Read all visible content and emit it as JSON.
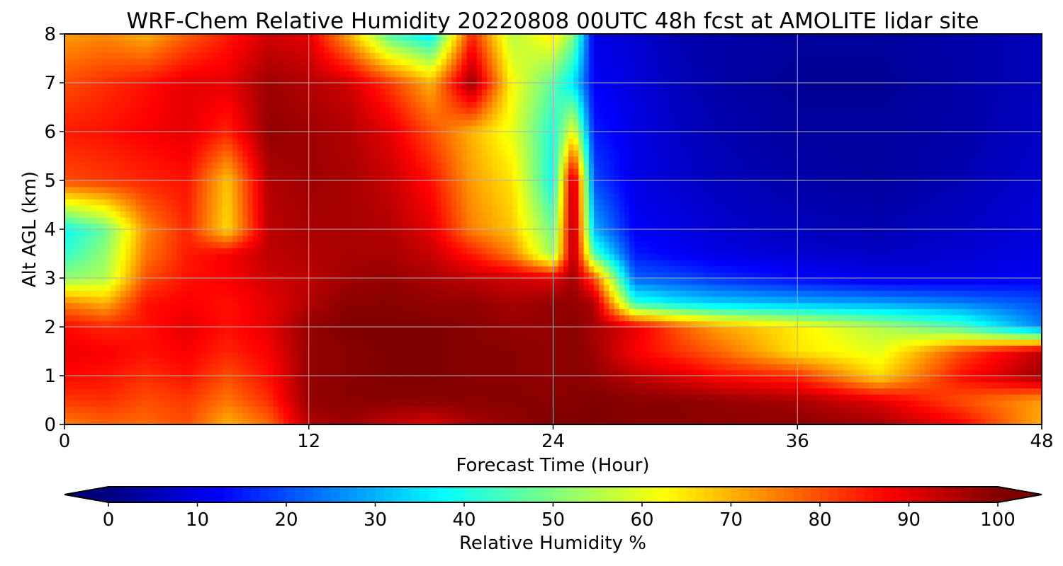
{
  "chart_data": {
    "type": "heatmap",
    "title": "WRF-Chem Relative Humidity 20220808 00UTC 48h fcst at AMOLITE lidar site",
    "xlabel": "Forecast Time (Hour)",
    "ylabel": "Alt AGL (km)",
    "xlim": [
      0,
      48
    ],
    "ylim": [
      0,
      8
    ],
    "x_ticks": [
      "0",
      "12",
      "24",
      "36",
      "48"
    ],
    "y_ticks": [
      "0",
      "1",
      "2",
      "3",
      "4",
      "5",
      "6",
      "7",
      "8"
    ],
    "grid": true,
    "colormap": "jet",
    "colorbar": {
      "label": "Relative Humidity %",
      "range": [
        0,
        100
      ],
      "ticks": [
        "0",
        "10",
        "20",
        "30",
        "40",
        "50",
        "60",
        "70",
        "80",
        "90",
        "100"
      ],
      "extend": "both",
      "orientation": "horizontal",
      "placement": "bottom"
    },
    "x": [
      0,
      2,
      4,
      6,
      8,
      10,
      12,
      14,
      16,
      18,
      20,
      22,
      24,
      25,
      26,
      28,
      30,
      32,
      36,
      40,
      44,
      48
    ],
    "y": [
      0,
      0.5,
      1,
      1.5,
      2,
      2.5,
      3,
      3.5,
      4,
      5,
      6,
      7,
      8
    ],
    "z": [
      [
        75,
        78,
        77,
        80,
        70,
        77,
        95,
        97,
        93,
        91,
        96,
        98,
        100,
        100,
        100,
        99,
        99,
        99,
        99,
        97,
        88,
        70
      ],
      [
        82,
        83,
        80,
        82,
        76,
        83,
        98,
        99,
        99,
        99,
        99,
        99,
        99,
        99,
        100,
        99,
        99,
        98,
        96,
        90,
        80,
        72
      ],
      [
        87,
        86,
        83,
        86,
        80,
        86,
        98,
        99,
        100,
        100,
        99,
        99,
        98,
        99,
        98,
        94,
        91,
        87,
        83,
        66,
        86,
        97
      ],
      [
        89,
        88,
        86,
        88,
        84,
        88,
        98,
        99,
        100,
        100,
        99,
        99,
        98,
        99,
        97,
        88,
        83,
        78,
        65,
        60,
        80,
        94
      ],
      [
        87,
        84,
        86,
        90,
        86,
        90,
        98,
        100,
        100,
        100,
        99,
        98,
        98,
        99,
        96,
        90,
        80,
        72,
        64,
        55,
        45,
        25
      ],
      [
        75,
        70,
        86,
        88,
        86,
        90,
        95,
        99,
        99,
        98,
        98,
        96,
        98,
        98,
        96,
        42,
        36,
        33,
        30,
        28,
        25,
        20
      ],
      [
        52,
        55,
        80,
        86,
        88,
        92,
        94,
        97,
        98,
        96,
        94,
        92,
        90,
        97,
        80,
        22,
        20,
        17,
        13,
        10,
        10,
        12
      ],
      [
        42,
        52,
        76,
        85,
        88,
        94,
        95,
        96,
        96,
        93,
        85,
        75,
        52,
        97,
        45,
        15,
        12,
        10,
        8,
        7,
        8,
        10
      ],
      [
        38,
        48,
        74,
        84,
        66,
        94,
        96,
        96,
        95,
        90,
        75,
        68,
        48,
        98,
        30,
        12,
        10,
        8,
        6,
        5,
        7,
        9
      ],
      [
        80,
        82,
        84,
        86,
        68,
        95,
        97,
        96,
        93,
        86,
        72,
        65,
        38,
        97,
        20,
        10,
        8,
        6,
        4,
        3,
        5,
        8
      ],
      [
        85,
        86,
        88,
        90,
        84,
        98,
        97,
        95,
        90,
        80,
        70,
        60,
        40,
        62,
        15,
        10,
        7,
        5,
        3,
        3,
        4,
        7
      ],
      [
        80,
        83,
        86,
        90,
        90,
        97,
        95,
        92,
        82,
        70,
        98,
        62,
        46,
        35,
        12,
        9,
        6,
        4,
        2,
        2,
        4,
        6
      ],
      [
        72,
        74,
        70,
        78,
        85,
        92,
        90,
        70,
        45,
        36,
        84,
        55,
        65,
        50,
        10,
        8,
        5,
        4,
        3,
        3,
        4,
        6
      ]
    ]
  }
}
